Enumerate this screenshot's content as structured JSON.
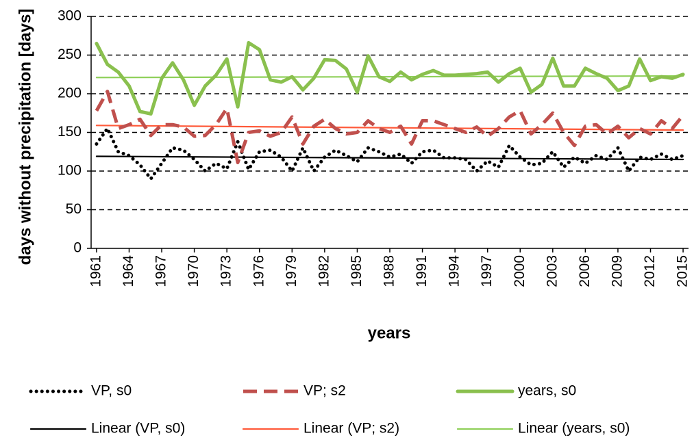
{
  "chart_data": {
    "type": "line",
    "y_label": "days without precipitation [days]",
    "x_label": "years",
    "x": [
      1961,
      1962,
      1963,
      1964,
      1965,
      1966,
      1967,
      1968,
      1969,
      1970,
      1971,
      1972,
      1973,
      1974,
      1975,
      1976,
      1977,
      1978,
      1979,
      1980,
      1981,
      1982,
      1983,
      1984,
      1985,
      1986,
      1987,
      1988,
      1989,
      1990,
      1991,
      1992,
      1993,
      1994,
      1995,
      1996,
      1997,
      1998,
      1999,
      2000,
      2001,
      2002,
      2003,
      2004,
      2005,
      2006,
      2007,
      2008,
      2009,
      2010,
      2011,
      2012,
      2013,
      2014,
      2015
    ],
    "series": [
      {
        "name": "VP, s0",
        "color": "#000000",
        "dash": "dotted",
        "values": [
          135,
          155,
          125,
          120,
          108,
          90,
          110,
          130,
          127,
          115,
          100,
          110,
          103,
          138,
          102,
          125,
          127,
          118,
          100,
          130,
          100,
          118,
          127,
          120,
          112,
          130,
          125,
          118,
          122,
          110,
          125,
          127,
          117,
          117,
          115,
          100,
          113,
          105,
          133,
          118,
          108,
          110,
          125,
          105,
          118,
          110,
          120,
          115,
          130,
          100,
          118,
          115,
          122,
          115,
          120
        ]
      },
      {
        "name": "VP; s2",
        "color": "#c0504d",
        "dash": "dashed",
        "values": [
          178,
          203,
          155,
          160,
          167,
          146,
          160,
          160,
          157,
          145,
          146,
          160,
          181,
          111,
          150,
          152,
          145,
          150,
          170,
          135,
          158,
          167,
          155,
          148,
          150,
          165,
          155,
          150,
          158,
          135,
          165,
          165,
          160,
          155,
          150,
          157,
          145,
          155,
          170,
          178,
          148,
          160,
          175,
          150,
          133,
          158,
          160,
          148,
          158,
          143,
          155,
          148,
          165,
          155,
          172
        ]
      },
      {
        "name": "years, s0",
        "color": "#8ac04e",
        "dash": "solid",
        "values": [
          265,
          238,
          228,
          210,
          177,
          174,
          220,
          240,
          218,
          185,
          210,
          224,
          245,
          183,
          266,
          257,
          218,
          215,
          222,
          205,
          220,
          244,
          243,
          232,
          202,
          249,
          222,
          216,
          228,
          218,
          225,
          230,
          224,
          224,
          225,
          226,
          228,
          215,
          226,
          233,
          202,
          212,
          246,
          210,
          210,
          233,
          226,
          220,
          204,
          210,
          245,
          217,
          222,
          220,
          225
        ]
      }
    ],
    "trendlines": [
      {
        "name": "Linear (VP, s0)",
        "color": "#000000",
        "x": [
          1961,
          2015
        ],
        "values": [
          119,
          115
        ]
      },
      {
        "name": "Linear (VP; s2)",
        "color": "#ff5a3a",
        "x": [
          1961,
          2015
        ],
        "values": [
          159,
          153
        ]
      },
      {
        "name": "Linear (years, s0)",
        "color": "#8fd05a",
        "x": [
          1961,
          2015
        ],
        "values": [
          221,
          223
        ]
      }
    ],
    "xlim": [
      1960.5,
      2015.5
    ],
    "xticks": [
      1961,
      1964,
      1967,
      1970,
      1973,
      1976,
      1979,
      1982,
      1985,
      1988,
      1991,
      1994,
      1997,
      2000,
      2003,
      2006,
      2009,
      2012,
      2015
    ],
    "ylim": [
      0,
      300
    ],
    "yticks": [
      0,
      50,
      100,
      150,
      200,
      250,
      300
    ],
    "grid": true
  }
}
